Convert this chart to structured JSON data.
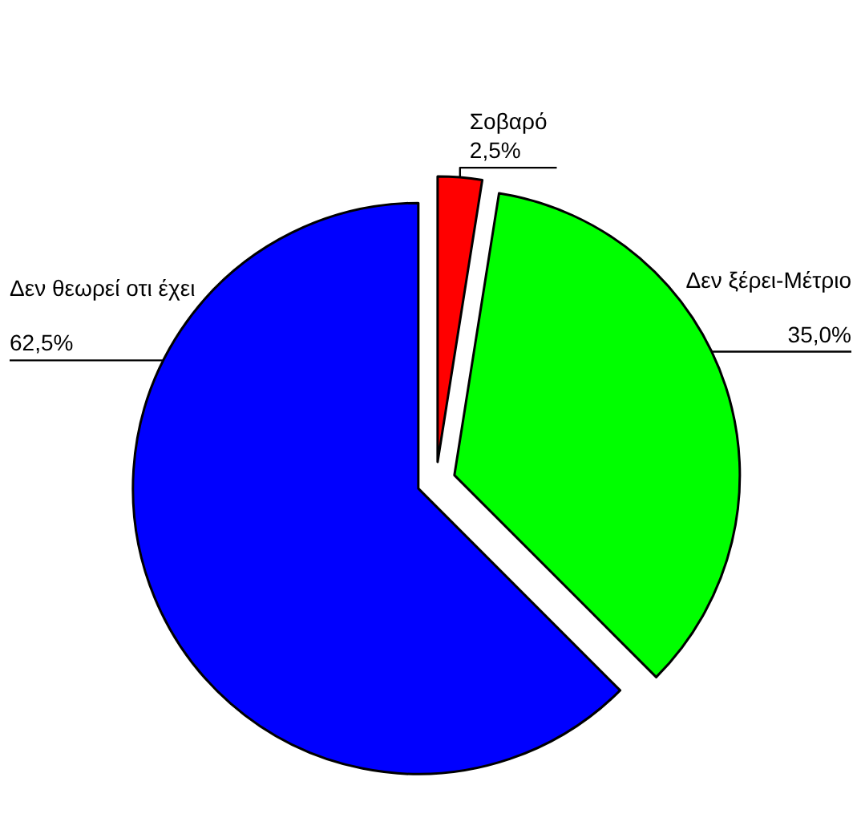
{
  "chart_data": {
    "type": "pie",
    "categories": [
      "Σοβαρό",
      "Δεν ξέρει-Μέτριο",
      "Δεν θεωρεί οτι έχει"
    ],
    "values": [
      2.5,
      35.0,
      62.5
    ],
    "colors": [
      "#ff0000",
      "#00ff00",
      "#0000ff"
    ],
    "value_labels": [
      "2,5%",
      "35,0%",
      "62,5%"
    ]
  }
}
